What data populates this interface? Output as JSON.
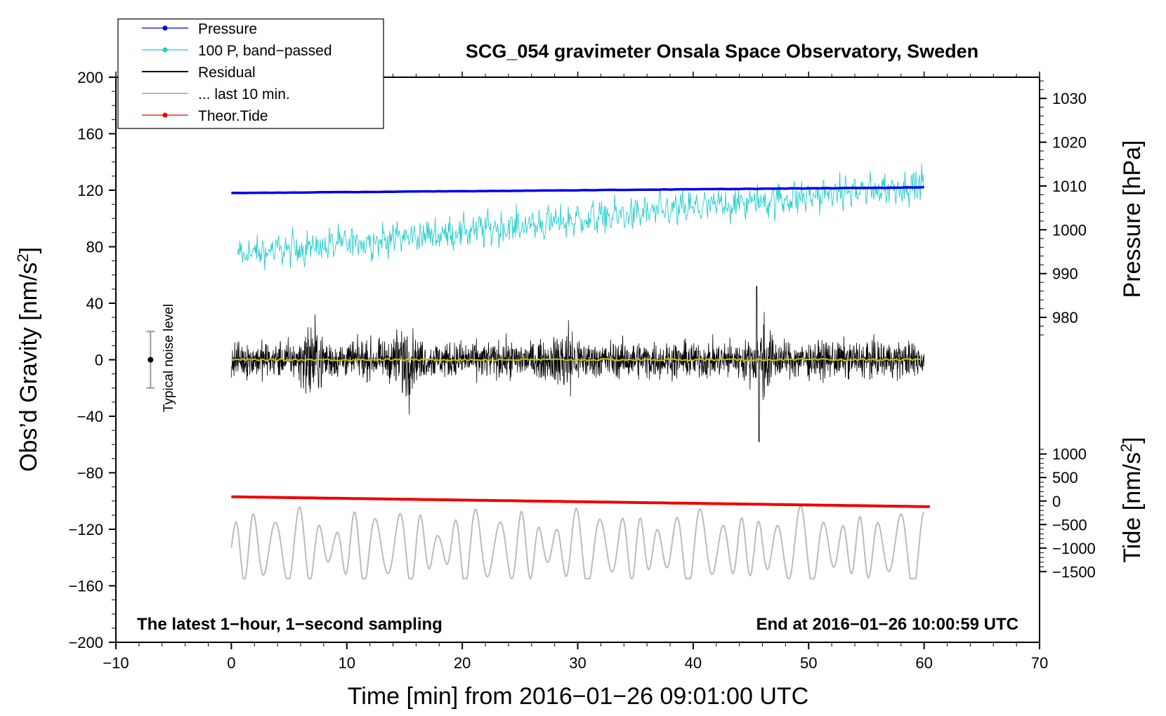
{
  "chart_data": {
    "type": "line",
    "title": "SCG_054 gravimeter Onsala Space Observatory, Sweden",
    "xlabel": "Time [min] from 2016−01−26 09:01:00 UTC",
    "ylabel_left": "Obs’d Gravity [nm/s",
    "ylabel_left_sup": "2",
    "ylabel_left_close": "]",
    "ylabel_right_pressure": "Pressure [hPa]",
    "ylabel_right_tide": "Tide [nm/s",
    "ylabel_right_tide_sup": "2",
    "ylabel_right_tide_close": "]",
    "xlim": [
      -10,
      70
    ],
    "xticks": [
      -10,
      0,
      10,
      20,
      30,
      40,
      50,
      60,
      70
    ],
    "xtick_labels": [
      "−10",
      "0",
      "10",
      "20",
      "30",
      "40",
      "50",
      "60",
      "70"
    ],
    "ylim_left": [
      -200,
      200
    ],
    "yticks_left": [
      200,
      160,
      120,
      80,
      40,
      0,
      -40,
      -80,
      -120,
      -160,
      -200
    ],
    "ytick_labels_left": [
      "200",
      "160",
      "120",
      "80",
      "40",
      "0",
      "−40",
      "−80",
      "−120",
      "−160",
      "−200"
    ],
    "pressure_axis": {
      "ticks": [
        1030,
        1020,
        1010,
        1000,
        990,
        980
      ],
      "tick_labels": [
        "1030",
        "1020",
        "1010",
        "1000",
        "990",
        "980"
      ],
      "gravity_at_1030": 185,
      "gravity_per_hpa": 3.1
    },
    "tide_axis": {
      "ticks": [
        1000,
        500,
        0,
        -500,
        -1000,
        -1500
      ],
      "tick_labels": [
        "1000",
        "500",
        "0",
        "−500",
        "−1000",
        "−1500"
      ],
      "gravity_at_0": -100,
      "gravity_per_unit": 0.0333
    },
    "legend": {
      "position": "top-left",
      "entries": [
        {
          "label": "Pressure",
          "color": "#0000ee",
          "marker": true
        },
        {
          "label": "100 P, band−passed",
          "color": "#22cccc",
          "marker": true
        },
        {
          "label": "Residual",
          "color": "#000000",
          "marker": false
        },
        {
          "label": "... last 10 min.",
          "color": "#bbbbbb",
          "marker": false
        },
        {
          "label": "Theor.Tide",
          "color": "#ee0000",
          "marker": true
        }
      ]
    },
    "series": [
      {
        "name": "Pressure",
        "color": "#0000ee",
        "x": [
          0,
          60
        ],
        "y": [
          118,
          122
        ]
      },
      {
        "name": "100 P, band−passed",
        "color": "#22cccc",
        "x": [
          0,
          60
        ],
        "y_trend": [
          74,
          124
        ],
        "noise_amplitude": 10
      },
      {
        "name": "Residual",
        "color": "#000000",
        "x": [
          0,
          60
        ],
        "y_center": 0,
        "noise_amplitude": 12,
        "burst_peak_minutes": [
          7,
          15,
          29,
          46
        ],
        "extremes": [
          52,
          -58
        ]
      },
      {
        "name": "Residual smoothed",
        "color": "#c8c800",
        "x": [
          0,
          60
        ],
        "y": [
          0,
          0
        ]
      },
      {
        "name": "... last 10 min.",
        "color": "#bbbbbb",
        "x": [
          0,
          60
        ],
        "y_center": -133,
        "amplitude_range": [
          -155,
          -90
        ]
      },
      {
        "name": "Theor.Tide",
        "color": "#ee0000",
        "x": [
          0,
          60.5
        ],
        "y": [
          -97,
          -104
        ]
      }
    ],
    "noise_marker": {
      "label": "Typical noise level",
      "x": -7,
      "y": 0,
      "y_range": [
        -20,
        20
      ]
    },
    "annotations": {
      "bottom_left": "The latest 1−hour, 1−second sampling",
      "bottom_right": "End at 2016−01−26 10:00:59 UTC"
    }
  },
  "colors": {
    "pressure": "#0000ee",
    "bandpassed": "#22cccc",
    "residual": "#000000",
    "smoothed": "#c8c800",
    "last10": "#bbbbbb",
    "tide": "#ee0000"
  }
}
